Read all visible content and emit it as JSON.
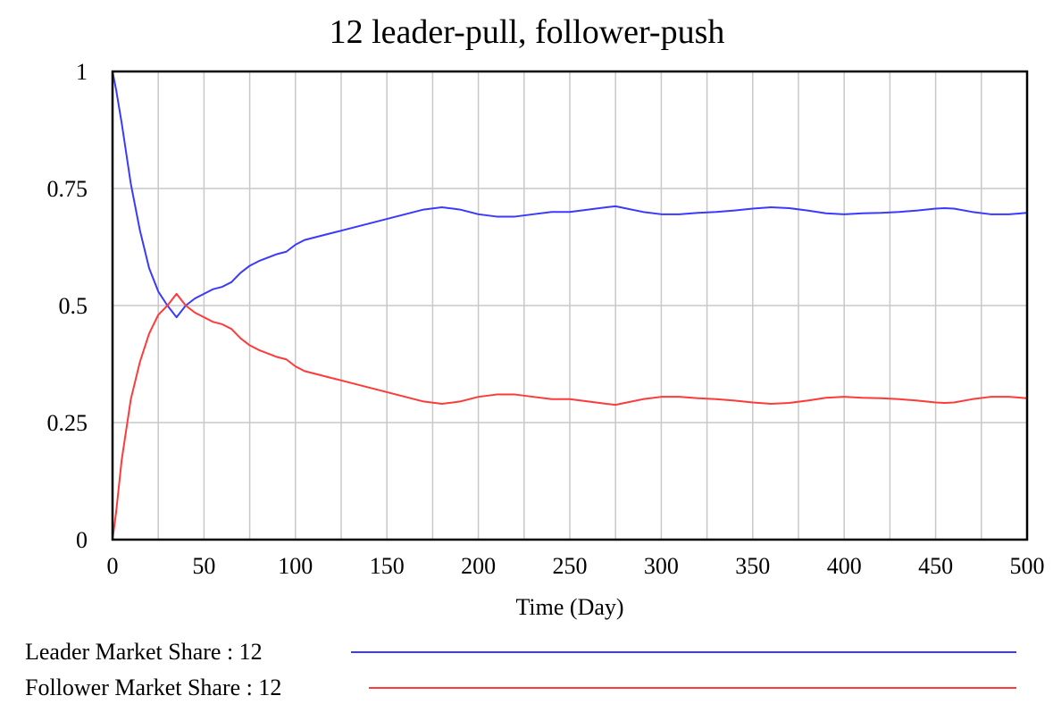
{
  "chart_data": {
    "type": "line",
    "title": "12 leader-pull, follower-push",
    "xlabel": "Time (Day)",
    "ylabel": "",
    "xlim": [
      0,
      500
    ],
    "ylim": [
      0,
      1
    ],
    "x_ticks": [
      0,
      50,
      100,
      150,
      200,
      250,
      300,
      350,
      400,
      450,
      500
    ],
    "x_tick_labels": [
      "0",
      "50",
      "100",
      "150",
      "200",
      "250",
      "300",
      "350",
      "400",
      "450",
      "500"
    ],
    "y_ticks": [
      0,
      0.25,
      0.5,
      0.75,
      1
    ],
    "y_tick_labels": [
      "0",
      "0.25",
      "0.5",
      "0.75",
      "1"
    ],
    "x_gridlines_every": 25,
    "grid": true,
    "legend_position": "bottom-left",
    "series": [
      {
        "name": "Leader Market Share : 12",
        "color": "#3a3aff",
        "x": [
          0,
          2,
          5,
          10,
          15,
          20,
          25,
          30,
          35,
          40,
          45,
          50,
          55,
          60,
          65,
          70,
          75,
          80,
          90,
          95,
          100,
          105,
          110,
          120,
          125,
          130,
          140,
          150,
          160,
          170,
          180,
          190,
          200,
          210,
          220,
          230,
          240,
          250,
          260,
          270,
          275,
          280,
          290,
          300,
          310,
          320,
          330,
          340,
          350,
          360,
          370,
          380,
          390,
          400,
          410,
          420,
          430,
          440,
          450,
          455,
          460,
          470,
          480,
          490,
          500
        ],
        "y": [
          1.0,
          0.96,
          0.89,
          0.76,
          0.66,
          0.58,
          0.53,
          0.5,
          0.475,
          0.5,
          0.515,
          0.525,
          0.535,
          0.54,
          0.55,
          0.57,
          0.585,
          0.595,
          0.61,
          0.615,
          0.63,
          0.64,
          0.645,
          0.655,
          0.66,
          0.665,
          0.675,
          0.685,
          0.695,
          0.705,
          0.71,
          0.705,
          0.695,
          0.69,
          0.69,
          0.695,
          0.7,
          0.7,
          0.705,
          0.71,
          0.712,
          0.708,
          0.7,
          0.695,
          0.695,
          0.698,
          0.7,
          0.703,
          0.707,
          0.71,
          0.708,
          0.703,
          0.697,
          0.695,
          0.697,
          0.698,
          0.7,
          0.703,
          0.707,
          0.708,
          0.707,
          0.7,
          0.695,
          0.695,
          0.698
        ]
      },
      {
        "name": "Follower Market Share : 12",
        "color": "#ff3a3a",
        "x": [
          0,
          2,
          5,
          10,
          15,
          20,
          25,
          30,
          35,
          40,
          45,
          50,
          55,
          60,
          65,
          70,
          75,
          80,
          90,
          95,
          100,
          105,
          110,
          120,
          125,
          130,
          140,
          150,
          160,
          170,
          180,
          190,
          200,
          210,
          220,
          230,
          240,
          250,
          260,
          270,
          275,
          280,
          290,
          300,
          310,
          320,
          330,
          340,
          350,
          360,
          370,
          380,
          390,
          400,
          410,
          420,
          430,
          440,
          450,
          455,
          460,
          470,
          480,
          490,
          500
        ],
        "y": [
          0.0,
          0.06,
          0.17,
          0.3,
          0.38,
          0.44,
          0.48,
          0.5,
          0.525,
          0.5,
          0.485,
          0.475,
          0.465,
          0.46,
          0.45,
          0.43,
          0.415,
          0.405,
          0.39,
          0.385,
          0.37,
          0.36,
          0.355,
          0.345,
          0.34,
          0.335,
          0.325,
          0.315,
          0.305,
          0.295,
          0.29,
          0.295,
          0.305,
          0.31,
          0.31,
          0.305,
          0.3,
          0.3,
          0.295,
          0.29,
          0.288,
          0.292,
          0.3,
          0.305,
          0.305,
          0.302,
          0.3,
          0.297,
          0.293,
          0.29,
          0.292,
          0.297,
          0.303,
          0.305,
          0.303,
          0.302,
          0.3,
          0.297,
          0.293,
          0.292,
          0.293,
          0.3,
          0.305,
          0.305,
          0.302
        ]
      }
    ]
  }
}
